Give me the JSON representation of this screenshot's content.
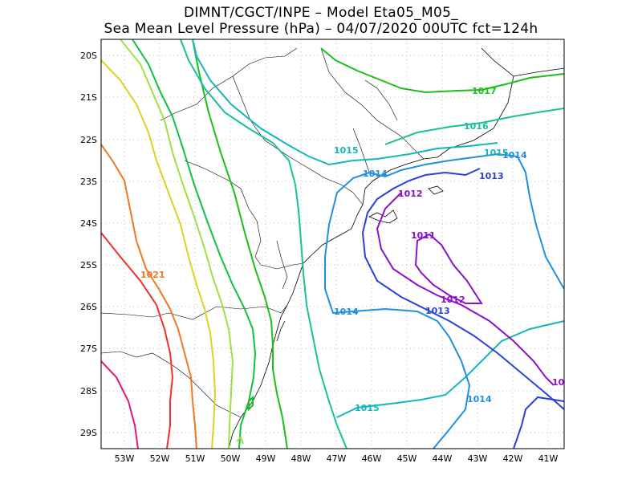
{
  "title": {
    "line1": "DIMNT/CGCT/INPE –  Model Eta05_M05_",
    "line2": "Sea Mean Level Pressure (hPa) – 04/07/2020 00UTC fct=124h"
  },
  "axes": {
    "lat_labels": [
      "20S",
      "21S",
      "22S",
      "23S",
      "24S",
      "25S",
      "26S",
      "27S",
      "28S",
      "29S"
    ],
    "lon_labels": [
      "53W",
      "52W",
      "51W",
      "50W",
      "49W",
      "48W",
      "47W",
      "46W",
      "45W",
      "44W",
      "43W",
      "42W",
      "41W"
    ]
  },
  "contour_labels": [
    {
      "text": "1017",
      "color": "#18c018"
    },
    {
      "text": "1016",
      "color": "#19c19a"
    },
    {
      "text": "1015",
      "color": "#12b8b8"
    },
    {
      "text": "1014",
      "color": "#1f8fe0"
    },
    {
      "text": "1015",
      "color": "#12b8b8"
    },
    {
      "text": "1014",
      "color": "#1f8fe0"
    },
    {
      "text": "1013",
      "color": "#2a40d8"
    },
    {
      "text": "1012",
      "color": "#8c10c8"
    },
    {
      "text": "1011",
      "color": "#8c10c8"
    },
    {
      "text": "1012",
      "color": "#8c10c8"
    },
    {
      "text": "1013",
      "color": "#2a40d8"
    },
    {
      "text": "1014",
      "color": "#1f8fe0"
    },
    {
      "text": "1021",
      "color": "#f07820"
    },
    {
      "text": "1015",
      "color": "#12b8b8"
    },
    {
      "text": "1014",
      "color": "#1f8fe0"
    },
    {
      "text": "10",
      "color": "#8c10c8"
    }
  ],
  "colors": {
    "c1017": "#18c018",
    "c1016": "#19c19a",
    "c1015": "#12b8b8",
    "c1014": "#1f8fe0",
    "c1013": "#2a40d8",
    "c1012": "#8c10c8",
    "c1011": "#8c10c8",
    "c1018": "#10c040",
    "c1019": "#a0e040",
    "c1020": "#e0d020",
    "c1021": "#f07820",
    "c1022": "#f03030",
    "c1023": "#e01880"
  }
}
